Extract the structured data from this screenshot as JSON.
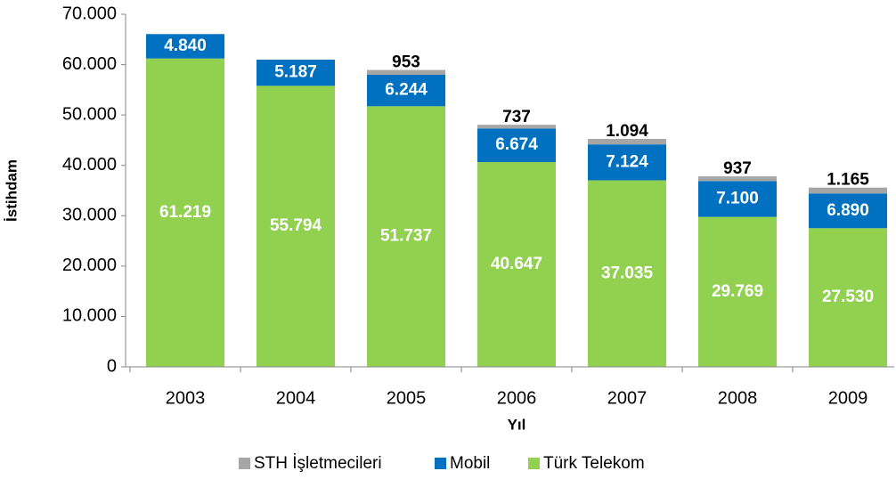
{
  "chart_data": {
    "type": "stacked_bar",
    "x_label": "Yıl",
    "y_label": "İstihdam",
    "categories": [
      "2003",
      "2004",
      "2005",
      "2006",
      "2007",
      "2008",
      "2009"
    ],
    "series": [
      {
        "name": "STH İşletmecileri",
        "color": "#a6a6a6",
        "values": [
          null,
          null,
          953,
          737,
          1094,
          937,
          1165
        ],
        "value_labels": [
          null,
          null,
          "953",
          "737",
          "1.094",
          "937",
          "1.165"
        ]
      },
      {
        "name": "Mobil",
        "color": "#0070c0",
        "values": [
          4840,
          5187,
          6244,
          6674,
          7124,
          7100,
          6890
        ],
        "value_labels": [
          "4.840",
          "5.187",
          "6.244",
          "6.674",
          "7.124",
          "7.100",
          "6.890"
        ]
      },
      {
        "name": "Türk Telekom",
        "color": "#92d050",
        "values": [
          61219,
          55794,
          51737,
          40647,
          37035,
          29769,
          27530
        ],
        "value_labels": [
          "61.219",
          "55.794",
          "51.737",
          "40.647",
          "37.035",
          "29.769",
          "27.530"
        ]
      }
    ],
    "ylim": [
      0,
      70000
    ],
    "yticks": [
      0,
      {
        "value": 10000,
        "label": "10.000"
      },
      {
        "value": 20000,
        "label": "20.000"
      },
      {
        "value": 30000,
        "label": "30.000"
      },
      {
        "value": 40000,
        "label": "40.000"
      },
      {
        "value": 50000,
        "label": "50.000"
      },
      {
        "value": 60000,
        "label": "60.000"
      },
      {
        "value": 70000,
        "label": "70.000"
      }
    ],
    "grid": false,
    "legend": "bottom"
  }
}
